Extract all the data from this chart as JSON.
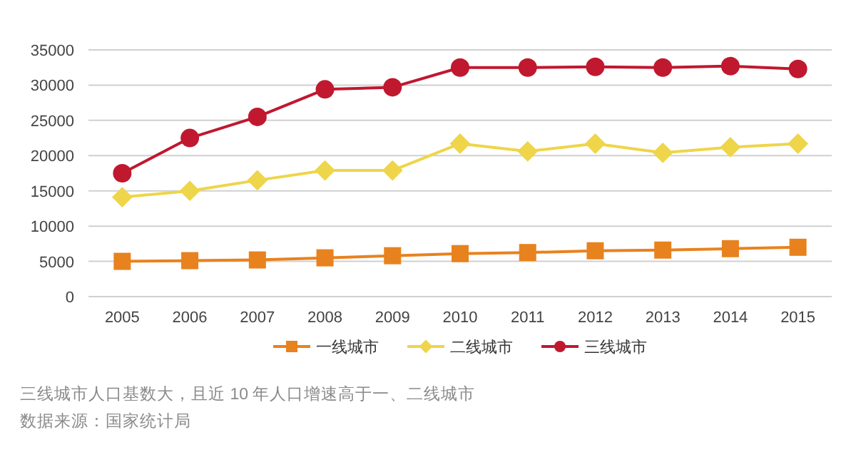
{
  "chart_data": {
    "type": "line",
    "categories": [
      "2005",
      "2006",
      "2007",
      "2008",
      "2009",
      "2010",
      "2011",
      "2012",
      "2013",
      "2014",
      "2015"
    ],
    "series": [
      {
        "name": "一线城市",
        "color": "#e8821e",
        "marker": "square",
        "values": [
          5000,
          5100,
          5200,
          5500,
          5800,
          6100,
          6250,
          6500,
          6600,
          6800,
          7000
        ]
      },
      {
        "name": "二线城市",
        "color": "#eed54a",
        "marker": "diamond",
        "values": [
          14100,
          15000,
          16500,
          17900,
          17900,
          21700,
          20600,
          21700,
          20400,
          21200,
          21700
        ]
      },
      {
        "name": "三线城市",
        "color": "#c0182f",
        "marker": "circle",
        "values": [
          17500,
          22500,
          25500,
          29400,
          29700,
          32500,
          32500,
          32600,
          32500,
          32700,
          32300
        ]
      }
    ],
    "ylim": [
      0,
      35000
    ],
    "yticks": [
      0,
      5000,
      10000,
      15000,
      20000,
      25000,
      30000,
      35000
    ],
    "grid": "y",
    "legend": "bottom",
    "line_style": "solid",
    "annotations": [
      "三线城市人口基数大，且近 10 年人口增速高于一、二线城市",
      "数据来源：国家统计局"
    ]
  }
}
